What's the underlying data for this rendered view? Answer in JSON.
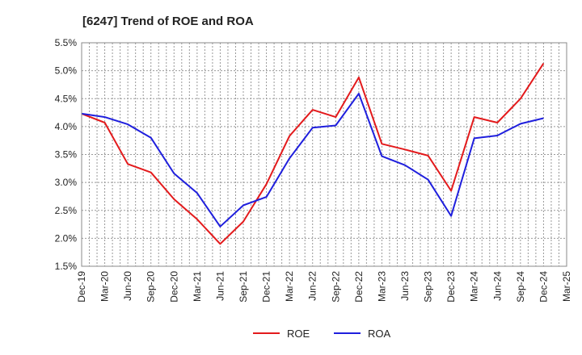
{
  "chart_data": {
    "type": "line",
    "title": "[6247]  Trend of ROE and ROA",
    "xlabel": "",
    "ylabel": "",
    "ylim": [
      1.5,
      5.5
    ],
    "yticks": [
      "1.5%",
      "2.0%",
      "2.5%",
      "3.0%",
      "3.5%",
      "4.0%",
      "4.5%",
      "5.0%",
      "5.5%"
    ],
    "categories": [
      "Dec-19",
      "Mar-20",
      "Jun-20",
      "Sep-20",
      "Dec-20",
      "Mar-21",
      "Jun-21",
      "Sep-21",
      "Dec-21",
      "Mar-22",
      "Jun-22",
      "Sep-22",
      "Dec-22",
      "Mar-23",
      "Jun-23",
      "Sep-23",
      "Dec-23",
      "Mar-24",
      "Jun-24",
      "Sep-24",
      "Dec-24",
      "Mar-25"
    ],
    "grid": true,
    "legend_position": "bottom",
    "series": [
      {
        "name": "ROE",
        "color": "#e31a1c",
        "values": [
          4.23,
          4.07,
          3.33,
          3.18,
          2.7,
          2.34,
          1.9,
          2.3,
          2.97,
          3.83,
          4.3,
          4.17,
          4.88,
          3.69,
          3.59,
          3.48,
          2.85,
          4.17,
          4.07,
          4.5,
          5.13,
          null
        ]
      },
      {
        "name": "ROA",
        "color": "#1f1fdd",
        "values": [
          4.23,
          4.17,
          4.04,
          3.8,
          3.16,
          2.81,
          2.21,
          2.59,
          2.74,
          3.43,
          3.98,
          4.02,
          4.59,
          3.47,
          3.31,
          3.05,
          2.4,
          3.79,
          3.84,
          4.05,
          4.15,
          null
        ]
      }
    ]
  }
}
